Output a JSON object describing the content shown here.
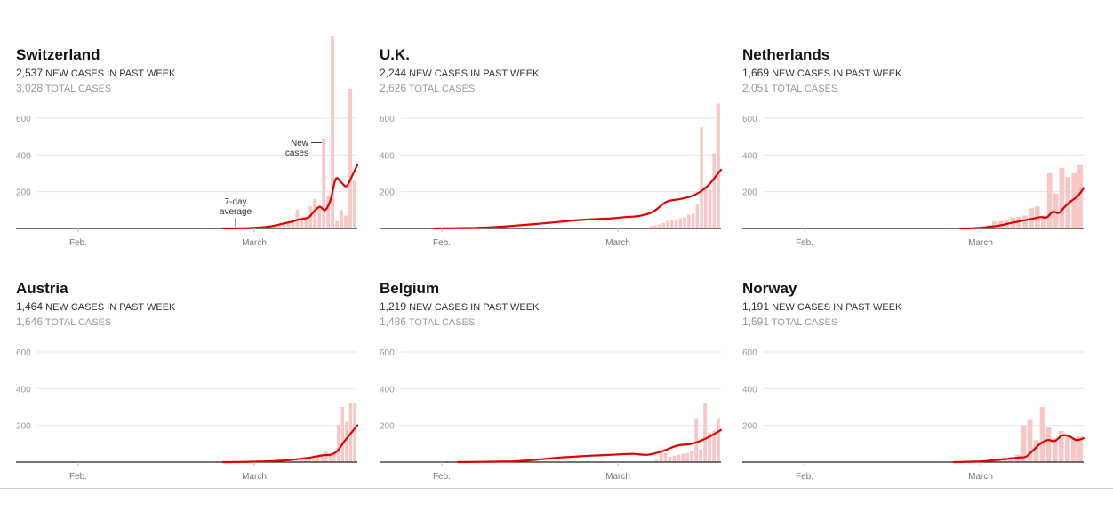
{
  "colors": {
    "line": "#e00000",
    "bar": "#f9c6c6",
    "grid": "#e6e6e6",
    "axis": "#222222"
  },
  "chart_data": [
    {
      "type": "bar",
      "title": "Switzerland",
      "stat_new": "2,537",
      "stat_new_label": "NEW CASES IN PAST WEEK",
      "stat_total": "3,028",
      "stat_total_label": "TOTAL CASES",
      "ylim": [
        0,
        600
      ],
      "yticks": [
        "600",
        "400",
        "200"
      ],
      "xticks": [
        "Feb.",
        "March"
      ],
      "annotations": {
        "line": "7-day average",
        "line_l1": "7-day",
        "line_l2": "average",
        "bars": "New cases",
        "bars_l1": "New",
        "bars_l2": "cases"
      },
      "bar_series": {
        "name": "New cases",
        "values": [
          0,
          0,
          0,
          1,
          1,
          3,
          3,
          5,
          6,
          10,
          18,
          25,
          35,
          45,
          100,
          55,
          60,
          120,
          160,
          110,
          490,
          180,
          1050,
          40,
          100,
          70,
          760,
          260
        ]
      },
      "line_series": {
        "name": "7-day average",
        "values": [
          0,
          0,
          0,
          1,
          1,
          2,
          4,
          6,
          8,
          12,
          18,
          25,
          32,
          38,
          48,
          53,
          62,
          95,
          118,
          100,
          155,
          270,
          250,
          230,
          285,
          345
        ]
      }
    },
    {
      "type": "bar",
      "title": "U.K.",
      "stat_new": "2,244",
      "stat_new_label": "NEW CASES IN PAST WEEK",
      "stat_total": "2,626",
      "stat_total_label": "TOTAL CASES",
      "ylim": [
        0,
        600
      ],
      "yticks": [
        "600",
        "400",
        "200"
      ],
      "xticks": [
        "Feb.",
        "March"
      ],
      "bar_series": {
        "name": "New cases",
        "values": [
          0,
          1,
          1,
          2,
          3,
          5,
          12,
          16,
          22,
          30,
          40,
          48,
          50,
          55,
          60,
          75,
          80,
          135,
          550,
          230,
          210,
          410,
          680
        ]
      },
      "line_series": {
        "name": "7-day average",
        "values": [
          0,
          1,
          2,
          3,
          6,
          10,
          16,
          22,
          28,
          35,
          42,
          48,
          52,
          55,
          62,
          68,
          90,
          145,
          160,
          180,
          230,
          320
        ]
      }
    },
    {
      "type": "bar",
      "title": "Netherlands",
      "stat_new": "1,669",
      "stat_new_label": "NEW CASES IN PAST WEEK",
      "stat_total": "2,051",
      "stat_total_label": "TOTAL CASES",
      "ylim": [
        0,
        600
      ],
      "yticks": [
        "600",
        "400",
        "200"
      ],
      "xticks": [
        "Feb.",
        "March"
      ],
      "bar_series": {
        "name": "New cases",
        "values": [
          0,
          0,
          1,
          2,
          5,
          8,
          12,
          18,
          38,
          40,
          45,
          60,
          65,
          70,
          110,
          120,
          70,
          300,
          190,
          330,
          280,
          300,
          345
        ]
      },
      "line_series": {
        "name": "7-day average",
        "values": [
          0,
          0,
          1,
          3,
          6,
          10,
          14,
          20,
          28,
          35,
          42,
          48,
          55,
          62,
          60,
          90,
          85,
          120,
          150,
          175,
          220
        ]
      }
    },
    {
      "type": "bar",
      "title": "Austria",
      "stat_new": "1,464",
      "stat_new_label": "NEW CASES IN PAST WEEK",
      "stat_total": "1,646",
      "stat_total_label": "TOTAL CASES",
      "ylim": [
        0,
        600
      ],
      "yticks": [
        "600",
        "400",
        "200"
      ],
      "xticks": [
        "Feb.",
        "March"
      ],
      "bar_series": {
        "name": "New cases",
        "values": [
          0,
          0,
          1,
          1,
          2,
          3,
          5,
          6,
          8,
          10,
          14,
          18,
          22,
          30,
          35,
          60,
          40,
          45,
          205,
          300,
          220,
          320,
          320
        ]
      },
      "line_series": {
        "name": "7-day average",
        "values": [
          0,
          0,
          1,
          1,
          2,
          3,
          4,
          5,
          7,
          9,
          12,
          16,
          20,
          25,
          32,
          38,
          40,
          60,
          110,
          155,
          200
        ]
      }
    },
    {
      "type": "bar",
      "title": "Belgium",
      "stat_new": "1,219",
      "stat_new_label": "NEW CASES IN PAST WEEK",
      "stat_total": "1,486",
      "stat_total_label": "TOTAL CASES",
      "ylim": [
        0,
        600
      ],
      "yticks": [
        "600",
        "400",
        "200"
      ],
      "xticks": [
        "Feb.",
        "March"
      ],
      "bar_series": {
        "name": "New cases",
        "values": [
          0,
          1,
          1,
          2,
          3,
          5,
          12,
          60,
          50,
          30,
          35,
          40,
          45,
          50,
          60,
          240,
          70,
          320,
          160,
          170,
          240
        ]
      },
      "line_series": {
        "name": "7-day average",
        "values": [
          0,
          1,
          2,
          3,
          5,
          10,
          18,
          25,
          30,
          35,
          38,
          42,
          45,
          40,
          60,
          90,
          100,
          130,
          175
        ]
      }
    },
    {
      "type": "bar",
      "title": "Norway",
      "stat_new": "1,191",
      "stat_new_label": "NEW CASES IN PAST WEEK",
      "stat_total": "1,591",
      "stat_total_label": "TOTAL CASES",
      "ylim": [
        0,
        600
      ],
      "yticks": [
        "600",
        "400",
        "200"
      ],
      "xticks": [
        "Feb.",
        "March"
      ],
      "bar_series": {
        "name": "New cases",
        "values": [
          0,
          1,
          2,
          4,
          6,
          10,
          15,
          20,
          25,
          30,
          40,
          200,
          230,
          120,
          300,
          190,
          130,
          170,
          135,
          130,
          140
        ]
      },
      "line_series": {
        "name": "7-day average",
        "values": [
          0,
          1,
          2,
          3,
          5,
          8,
          12,
          16,
          20,
          25,
          30,
          65,
          100,
          120,
          115,
          145,
          140,
          120,
          130
        ]
      }
    }
  ]
}
